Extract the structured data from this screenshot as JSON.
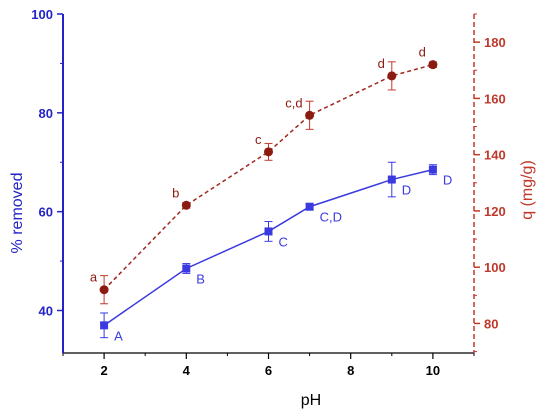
{
  "chart_data": {
    "type": "line",
    "xlabel": "pH",
    "ylabel_left": "% removed",
    "ylabel_right": "q (mg/g)",
    "xlim": [
      1,
      11
    ],
    "ylim_left": [
      31.4,
      100
    ],
    "ylim_right": [
      69.5,
      190
    ],
    "x_ticks": [
      2,
      4,
      6,
      8,
      10
    ],
    "y_ticks_left": [
      40,
      60,
      80,
      100
    ],
    "y_ticks_right": [
      80,
      100,
      120,
      140,
      160,
      180
    ],
    "grid": false,
    "colors": {
      "left_axis": "#2323c8",
      "right_axis": "#c0392b",
      "removed_series": "#3a3ae0",
      "q_series": "#a0281e",
      "q_marker": "#8b1a10"
    },
    "series": [
      {
        "axis": "left",
        "line_style": "solid",
        "marker": "square",
        "x": [
          2,
          4,
          6,
          7,
          9,
          10
        ],
        "values": [
          37.0,
          48.5,
          56.0,
          61.0,
          66.5,
          68.5
        ],
        "errors": [
          2.5,
          1.0,
          2.0,
          0.6,
          3.5,
          1.0
        ],
        "labels": [
          "A",
          "B",
          "C",
          "C,D",
          "D",
          "D"
        ]
      },
      {
        "axis": "right",
        "line_style": "dashed",
        "marker": "circle",
        "x": [
          2,
          4,
          6,
          7,
          9,
          10
        ],
        "values": [
          92,
          122,
          141,
          154,
          168,
          172
        ],
        "errors": [
          5,
          1,
          3,
          5,
          5,
          1
        ],
        "labels": [
          "a",
          "b",
          "c",
          "c,d",
          "d",
          "d"
        ]
      }
    ]
  }
}
